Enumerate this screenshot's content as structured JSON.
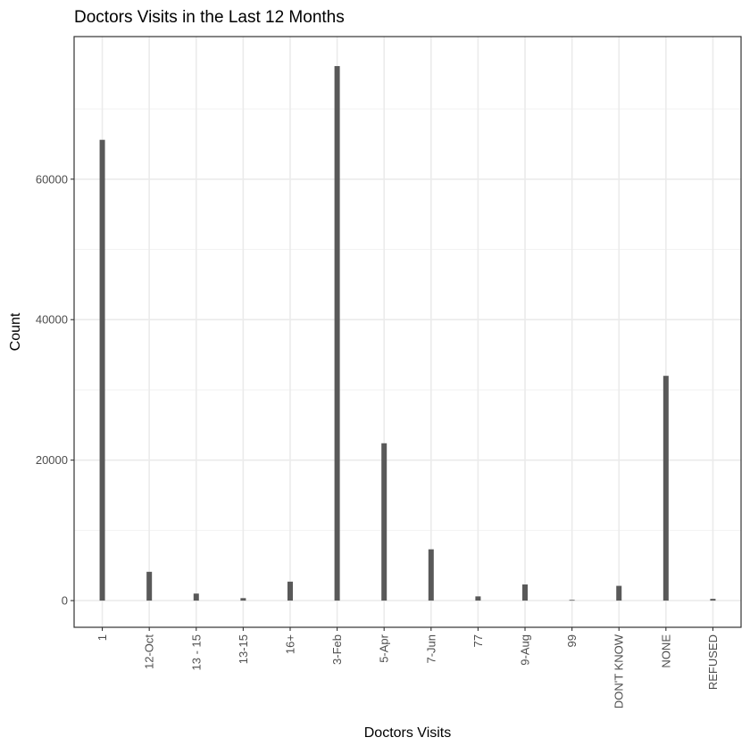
{
  "chart_data": {
    "type": "bar",
    "title": "Doctors Visits in the Last 12 Months",
    "xlabel": "Doctors Visits",
    "ylabel": "Count",
    "categories": [
      "1",
      "12-Oct",
      "13 - 15",
      "13-15",
      "16+",
      "3-Feb",
      "5-Apr",
      "7-Jun",
      "77",
      "9-Aug",
      "99",
      "DON'T KNOW",
      "NONE",
      "REFUSED"
    ],
    "values": [
      65600,
      4100,
      1000,
      350,
      2700,
      76100,
      22400,
      7300,
      600,
      2300,
      100,
      2100,
      32000,
      250
    ],
    "ylim": [
      -3800,
      80300
    ],
    "yticks": [
      0,
      20000,
      40000,
      60000
    ],
    "grid": true,
    "bar_color": "#595959"
  }
}
